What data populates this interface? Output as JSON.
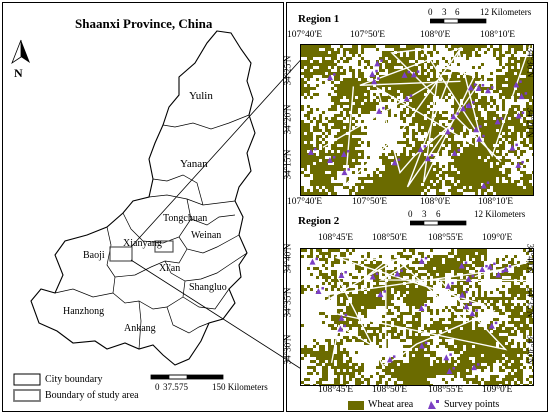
{
  "province_panel": {
    "title": "Shaanxi Province, China",
    "north_label": "N",
    "cities": [
      "Yulin",
      "Yanan",
      "Tongchuan",
      "Weinan",
      "Xianyang",
      "Baoji",
      "Xi'an",
      "Shangluo",
      "Hanzhong",
      "Ankang"
    ],
    "scale_ticks": [
      "0",
      "37.5",
      "75",
      "150 Kilometers"
    ],
    "legend": {
      "city_boundary": "City boundary",
      "study_area_boundary": "Boundary of study area"
    }
  },
  "region1": {
    "title": "Region 1",
    "scale_ticks": [
      "0",
      "3",
      "6",
      "12 Kilometers"
    ],
    "top_lon_labels": [
      "107°40'E",
      "107°50'E",
      "108°0'E",
      "108°10'E"
    ],
    "bottom_lon_labels": [
      "107°40'E",
      "107°50'E",
      "108°0'E",
      "108°10'E"
    ],
    "left_lat_labels": [
      "34°25'N",
      "34°20'N",
      "34°15'N"
    ],
    "right_lat_labels": [
      "34°30'N",
      "34°20'N"
    ],
    "survey_point_count": 32
  },
  "region2": {
    "title": "Region 2",
    "scale_ticks": [
      "0",
      "3",
      "6",
      "12 Kilometers"
    ],
    "top_lon_labels": [
      "108°45'E",
      "108°50'E",
      "108°55'E",
      "109°0'E"
    ],
    "bottom_lon_labels": [
      "108°45'E",
      "108°50'E",
      "108°55'E",
      "109°0'E"
    ],
    "left_lat_labels": [
      "34°40'N",
      "34°35'N",
      "34°30'N"
    ],
    "right_lat_labels": [
      "34°40'N",
      "34°35'N",
      "34°30'N"
    ],
    "survey_point_count": 26
  },
  "legend": {
    "wheat_area": "Wheat area",
    "survey_points": "Survey points"
  },
  "colors": {
    "wheat": "#6b6b00",
    "survey_point": "#7b3fc4",
    "frame": "#000000"
  }
}
